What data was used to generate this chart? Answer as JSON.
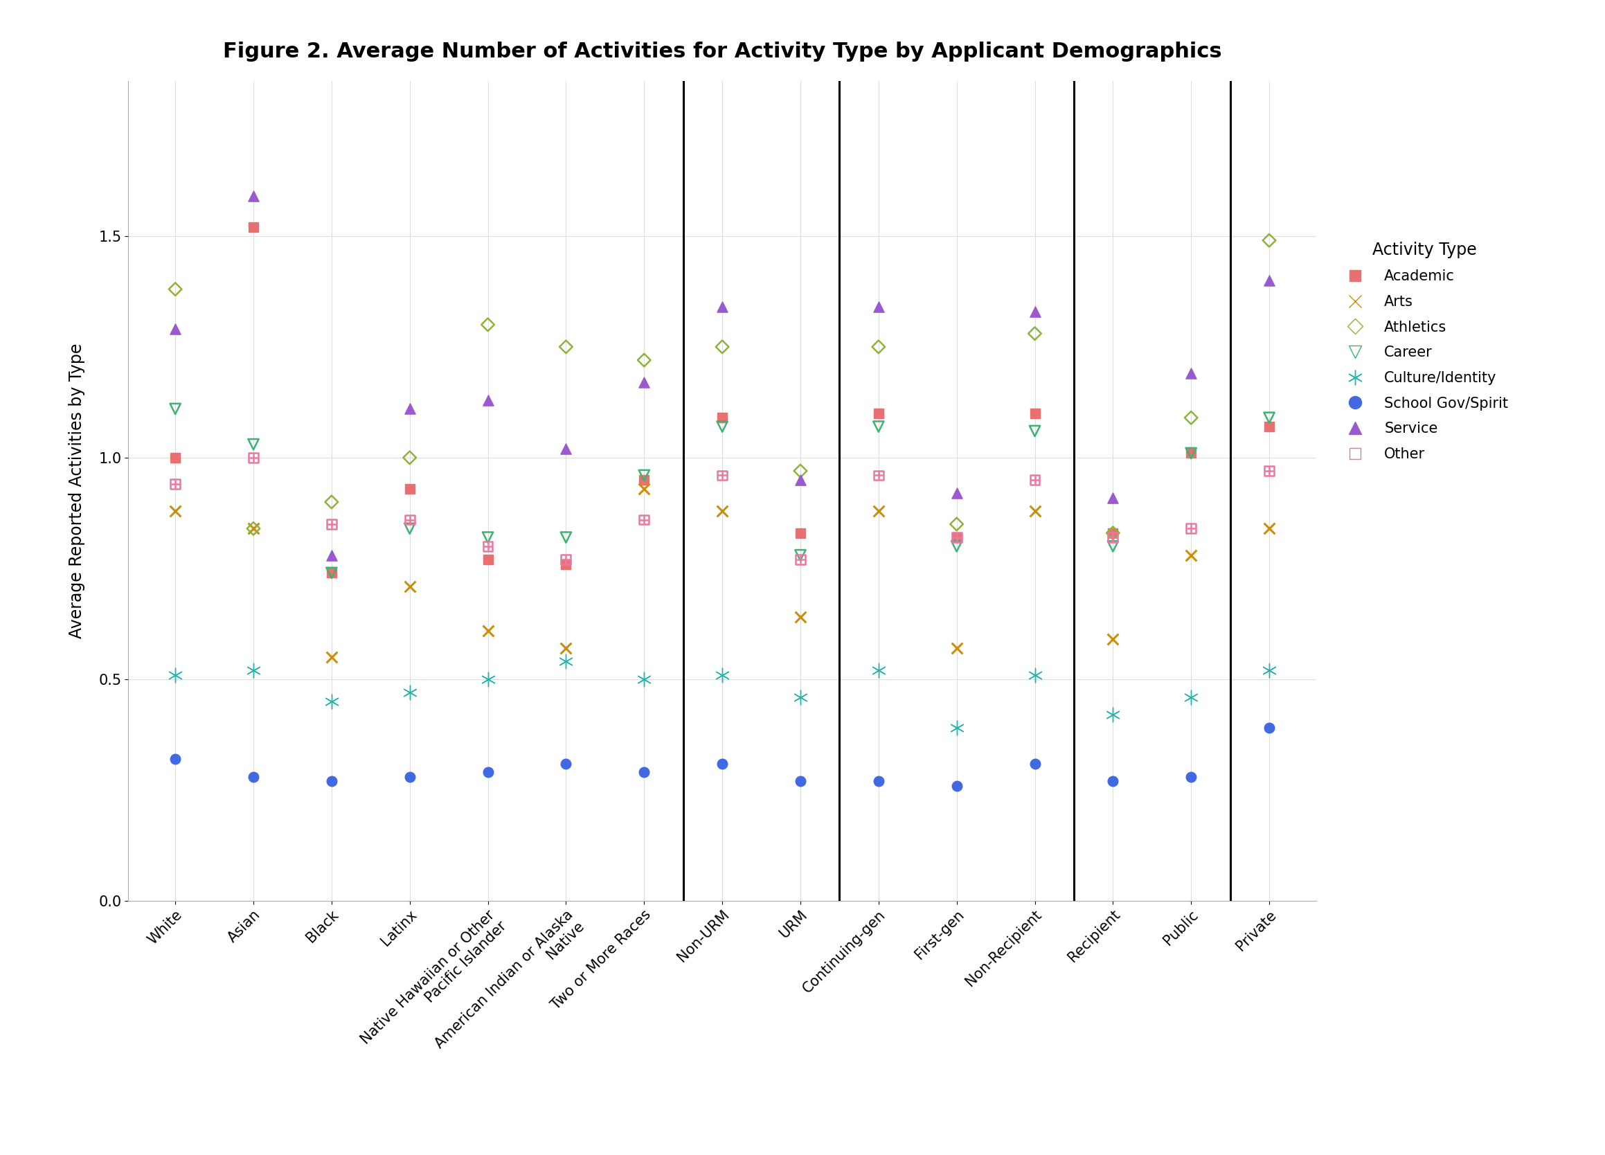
{
  "title": "Figure 2. Average Number of Activities for Activity Type by Applicant Demographics",
  "ylabel": "Average Reported Activities by Type",
  "categories": [
    "White",
    "Asian",
    "Black",
    "Latinx",
    "Native Hawaiian or Other\nPacific Islander",
    "American Indian or Alaska\nNative",
    "Two or More Races",
    "Non-URM",
    "URM",
    "Continuing-gen",
    "First-gen",
    "Non-Recipient",
    "Recipient",
    "Public",
    "Private"
  ],
  "dividers": [
    6.5,
    8.5,
    11.5,
    13.5
  ],
  "series": {
    "Academic": {
      "color": "#E87070",
      "marker": "s",
      "filled": true,
      "values": [
        1.0,
        1.52,
        0.74,
        0.93,
        0.77,
        0.76,
        0.95,
        1.09,
        0.83,
        1.1,
        0.82,
        1.1,
        0.83,
        1.01,
        1.07
      ]
    },
    "Arts": {
      "color": "#C8900A",
      "marker": "x",
      "filled": false,
      "values": [
        0.88,
        0.84,
        0.55,
        0.71,
        0.61,
        0.57,
        0.93,
        0.88,
        0.64,
        0.88,
        0.57,
        0.88,
        0.59,
        0.78,
        0.84
      ]
    },
    "Athletics": {
      "color": "#8DB33A",
      "marker": "D",
      "filled": false,
      "values": [
        1.38,
        0.84,
        0.9,
        1.0,
        1.3,
        1.25,
        1.22,
        1.25,
        0.97,
        1.25,
        0.85,
        1.28,
        0.83,
        1.09,
        1.49
      ]
    },
    "Career": {
      "color": "#3CB371",
      "marker": "v",
      "filled": false,
      "values": [
        1.11,
        1.03,
        0.74,
        0.84,
        0.82,
        0.82,
        0.96,
        1.07,
        0.78,
        1.07,
        0.8,
        1.06,
        0.8,
        1.01,
        1.09
      ]
    },
    "Culture/Identity": {
      "color": "#20B2AA",
      "marker": "*",
      "filled": true,
      "values": [
        0.51,
        0.52,
        0.45,
        0.47,
        0.5,
        0.54,
        0.5,
        0.51,
        0.46,
        0.52,
        0.39,
        0.51,
        0.42,
        0.46,
        0.52
      ]
    },
    "School Gov/Spirit": {
      "color": "#4169E1",
      "marker": "o",
      "filled": true,
      "values": [
        0.32,
        0.28,
        0.27,
        0.28,
        0.29,
        0.31,
        0.29,
        0.31,
        0.27,
        0.27,
        0.26,
        0.31,
        0.27,
        0.28,
        0.39
      ]
    },
    "Service": {
      "color": "#9B59D0",
      "marker": "^",
      "filled": true,
      "values": [
        1.29,
        1.59,
        0.78,
        1.11,
        1.13,
        1.02,
        1.17,
        1.34,
        0.95,
        1.34,
        0.92,
        1.33,
        0.91,
        1.19,
        1.4
      ]
    },
    "Other": {
      "color": "#E878A0",
      "marker": "sq_plus",
      "filled": false,
      "values": [
        0.94,
        1.0,
        0.85,
        0.86,
        0.8,
        0.77,
        0.86,
        0.96,
        0.77,
        0.96,
        0.82,
        0.95,
        0.82,
        0.84,
        0.97
      ]
    }
  },
  "ylim": [
    0.0,
    1.85
  ],
  "yticks": [
    0.0,
    0.5,
    1.0,
    1.5
  ],
  "background_color": "#FFFFFF",
  "grid_color": "#DDDDDD"
}
